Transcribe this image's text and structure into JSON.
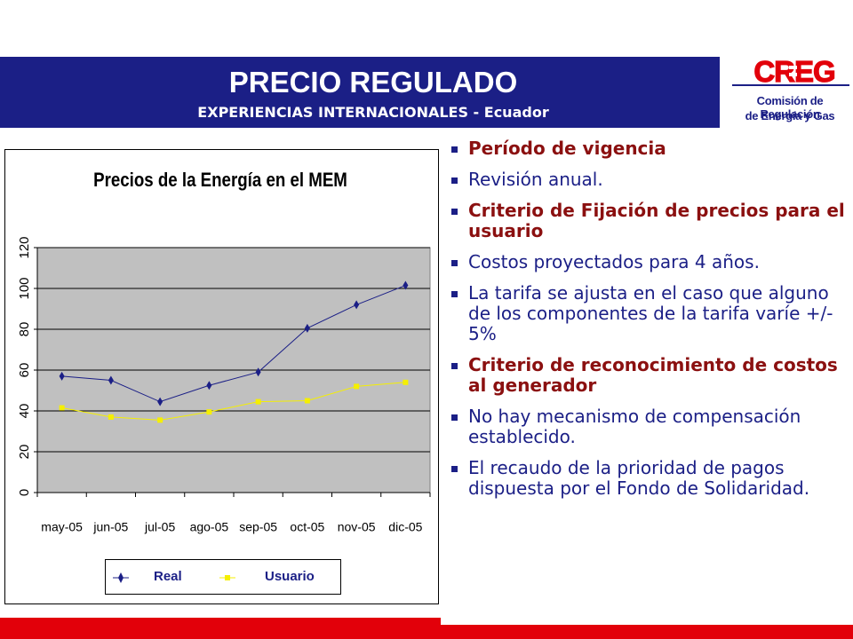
{
  "slide": {
    "title": "PRECIO REGULADO",
    "subtitle": "EXPERIENCIAS INTERNACIONALES - Ecuador",
    "colors": {
      "title_band": "#1b1f86",
      "accent_red": "#e2000a",
      "bold_text": "#8b1010"
    }
  },
  "logo": {
    "mark": "CREG",
    "line1": "Comisión de Regulación",
    "line2": "de Energía y Gas"
  },
  "bullets": [
    {
      "text": "Período de vigencia",
      "bold": true
    },
    {
      "text": "Revisión anual.",
      "bold": false
    },
    {
      "text": "Criterio de Fijación de precios para el usuario",
      "bold": true
    },
    {
      "text": "Costos proyectados para 4 años.",
      "bold": false
    },
    {
      "text": "La tarifa se ajusta en el caso que alguno de los componentes de la tarifa varíe +/- 5%",
      "bold": false
    },
    {
      "text": "Criterio de reconocimiento de costos al generador",
      "bold": true
    },
    {
      "text": "No hay mecanismo de compensación establecido.",
      "bold": false
    },
    {
      "text": "El recaudo de la prioridad de pagos dispuesta por el Fondo de Solidaridad.",
      "bold": false
    }
  ],
  "chart_data": {
    "type": "line",
    "title": "Precios de la Energía en el MEM",
    "categories": [
      "may-05",
      "jun-05",
      "jul-05",
      "ago-05",
      "sep-05",
      "oct-05",
      "nov-05",
      "dic-05"
    ],
    "series": [
      {
        "name": "Real",
        "color": "#1b1f86",
        "values": [
          57,
          55,
          44.5,
          52.5,
          59,
          80.5,
          92,
          101.5
        ]
      },
      {
        "name": "Usuario",
        "color": "#f5ef00",
        "values": [
          41.5,
          37,
          35.5,
          39.5,
          44.5,
          45,
          52,
          54
        ]
      }
    ],
    "ylim": [
      0,
      120
    ],
    "yticks": [
      "0",
      "20",
      "40",
      "60",
      "80",
      "100",
      "120"
    ],
    "grid": true,
    "legend": "bottom",
    "plot_background": "#c0c0c0"
  }
}
